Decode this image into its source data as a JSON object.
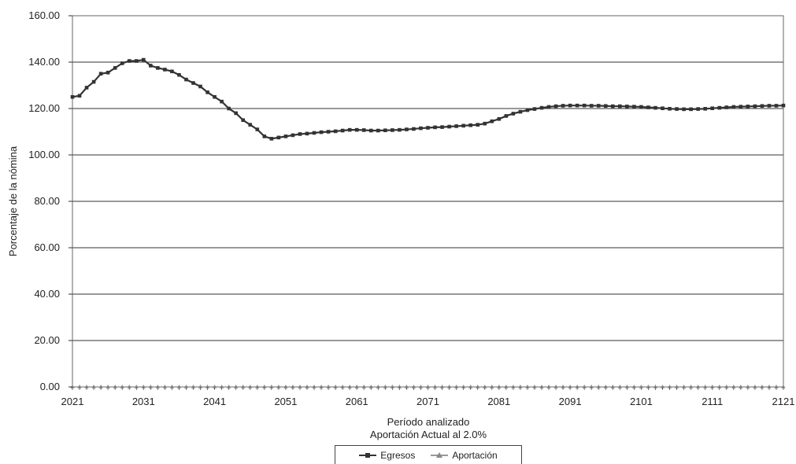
{
  "chart_data": {
    "type": "line",
    "xlabel": "Período analizado",
    "subtitle": "Aportación Actual al 2.0%",
    "ylabel": "Porcentaje de la nómina",
    "xlim": [
      2021,
      2121
    ],
    "ylim": [
      0,
      160
    ],
    "x_ticks": [
      "2021",
      "2031",
      "2041",
      "2051",
      "2061",
      "2071",
      "2081",
      "2091",
      "2101",
      "2111",
      "2121"
    ],
    "y_ticks": [
      "0.00",
      "20.00",
      "40.00",
      "60.00",
      "80.00",
      "100.00",
      "120.00",
      "140.00",
      "160.00"
    ],
    "grid": "horizontal",
    "legend_position": "bottom",
    "x": [
      2021,
      2022,
      2023,
      2024,
      2025,
      2026,
      2027,
      2028,
      2029,
      2030,
      2031,
      2032,
      2033,
      2034,
      2035,
      2036,
      2037,
      2038,
      2039,
      2040,
      2041,
      2042,
      2043,
      2044,
      2045,
      2046,
      2047,
      2048,
      2049,
      2050,
      2051,
      2052,
      2053,
      2054,
      2055,
      2056,
      2057,
      2058,
      2059,
      2060,
      2061,
      2062,
      2063,
      2064,
      2065,
      2066,
      2067,
      2068,
      2069,
      2070,
      2071,
      2072,
      2073,
      2074,
      2075,
      2076,
      2077,
      2078,
      2079,
      2080,
      2081,
      2082,
      2083,
      2084,
      2085,
      2086,
      2087,
      2088,
      2089,
      2090,
      2091,
      2092,
      2093,
      2094,
      2095,
      2096,
      2097,
      2098,
      2099,
      2100,
      2101,
      2102,
      2103,
      2104,
      2105,
      2106,
      2107,
      2108,
      2109,
      2110,
      2111,
      2112,
      2113,
      2114,
      2115,
      2116,
      2117,
      2118,
      2119,
      2120,
      2121
    ],
    "series": [
      {
        "name": "Egresos",
        "color": "#333333",
        "marker": "square",
        "values": [
          125.0,
          125.5,
          129.0,
          131.5,
          135.0,
          135.5,
          137.5,
          139.5,
          140.5,
          140.5,
          141.0,
          138.5,
          137.5,
          136.8,
          136.0,
          134.5,
          132.5,
          131.0,
          129.5,
          127.0,
          125.0,
          123.0,
          120.0,
          118.0,
          115.0,
          113.0,
          111.0,
          108.0,
          107.0,
          107.5,
          108.0,
          108.5,
          109.0,
          109.2,
          109.5,
          109.8,
          110.0,
          110.2,
          110.5,
          110.8,
          110.8,
          110.7,
          110.5,
          110.5,
          110.6,
          110.7,
          110.8,
          111.0,
          111.2,
          111.5,
          111.7,
          111.9,
          112.0,
          112.2,
          112.4,
          112.6,
          112.8,
          113.0,
          113.5,
          114.5,
          115.5,
          116.8,
          117.8,
          118.6,
          119.3,
          119.8,
          120.3,
          120.7,
          121.0,
          121.2,
          121.3,
          121.3,
          121.3,
          121.2,
          121.2,
          121.1,
          121.0,
          121.0,
          120.9,
          120.8,
          120.7,
          120.5,
          120.3,
          120.1,
          119.9,
          119.8,
          119.7,
          119.7,
          119.8,
          119.9,
          120.1,
          120.3,
          120.5,
          120.7,
          120.8,
          120.9,
          121.0,
          121.1,
          121.2,
          121.2,
          121.3
        ]
      },
      {
        "name": "Aportación",
        "color": "#888888",
        "marker": "triangle",
        "values": [
          0,
          0,
          0,
          0,
          0,
          0,
          0,
          0,
          0,
          0,
          0,
          0,
          0,
          0,
          0,
          0,
          0,
          0,
          0,
          0,
          0,
          0,
          0,
          0,
          0,
          0,
          0,
          0,
          0,
          0,
          0,
          0,
          0,
          0,
          0,
          0,
          0,
          0,
          0,
          0,
          0,
          0,
          0,
          0,
          0,
          0,
          0,
          0,
          0,
          0,
          0,
          0,
          0,
          0,
          0,
          0,
          0,
          0,
          0,
          0,
          0,
          0,
          0,
          0,
          0,
          0,
          0,
          0,
          0,
          0,
          0,
          0,
          0,
          0,
          0,
          0,
          0,
          0,
          0,
          0,
          0,
          0,
          0,
          0,
          0,
          0,
          0,
          0,
          0,
          0,
          0,
          0,
          0,
          0,
          0,
          0,
          0,
          0,
          0,
          0,
          0
        ]
      }
    ]
  }
}
